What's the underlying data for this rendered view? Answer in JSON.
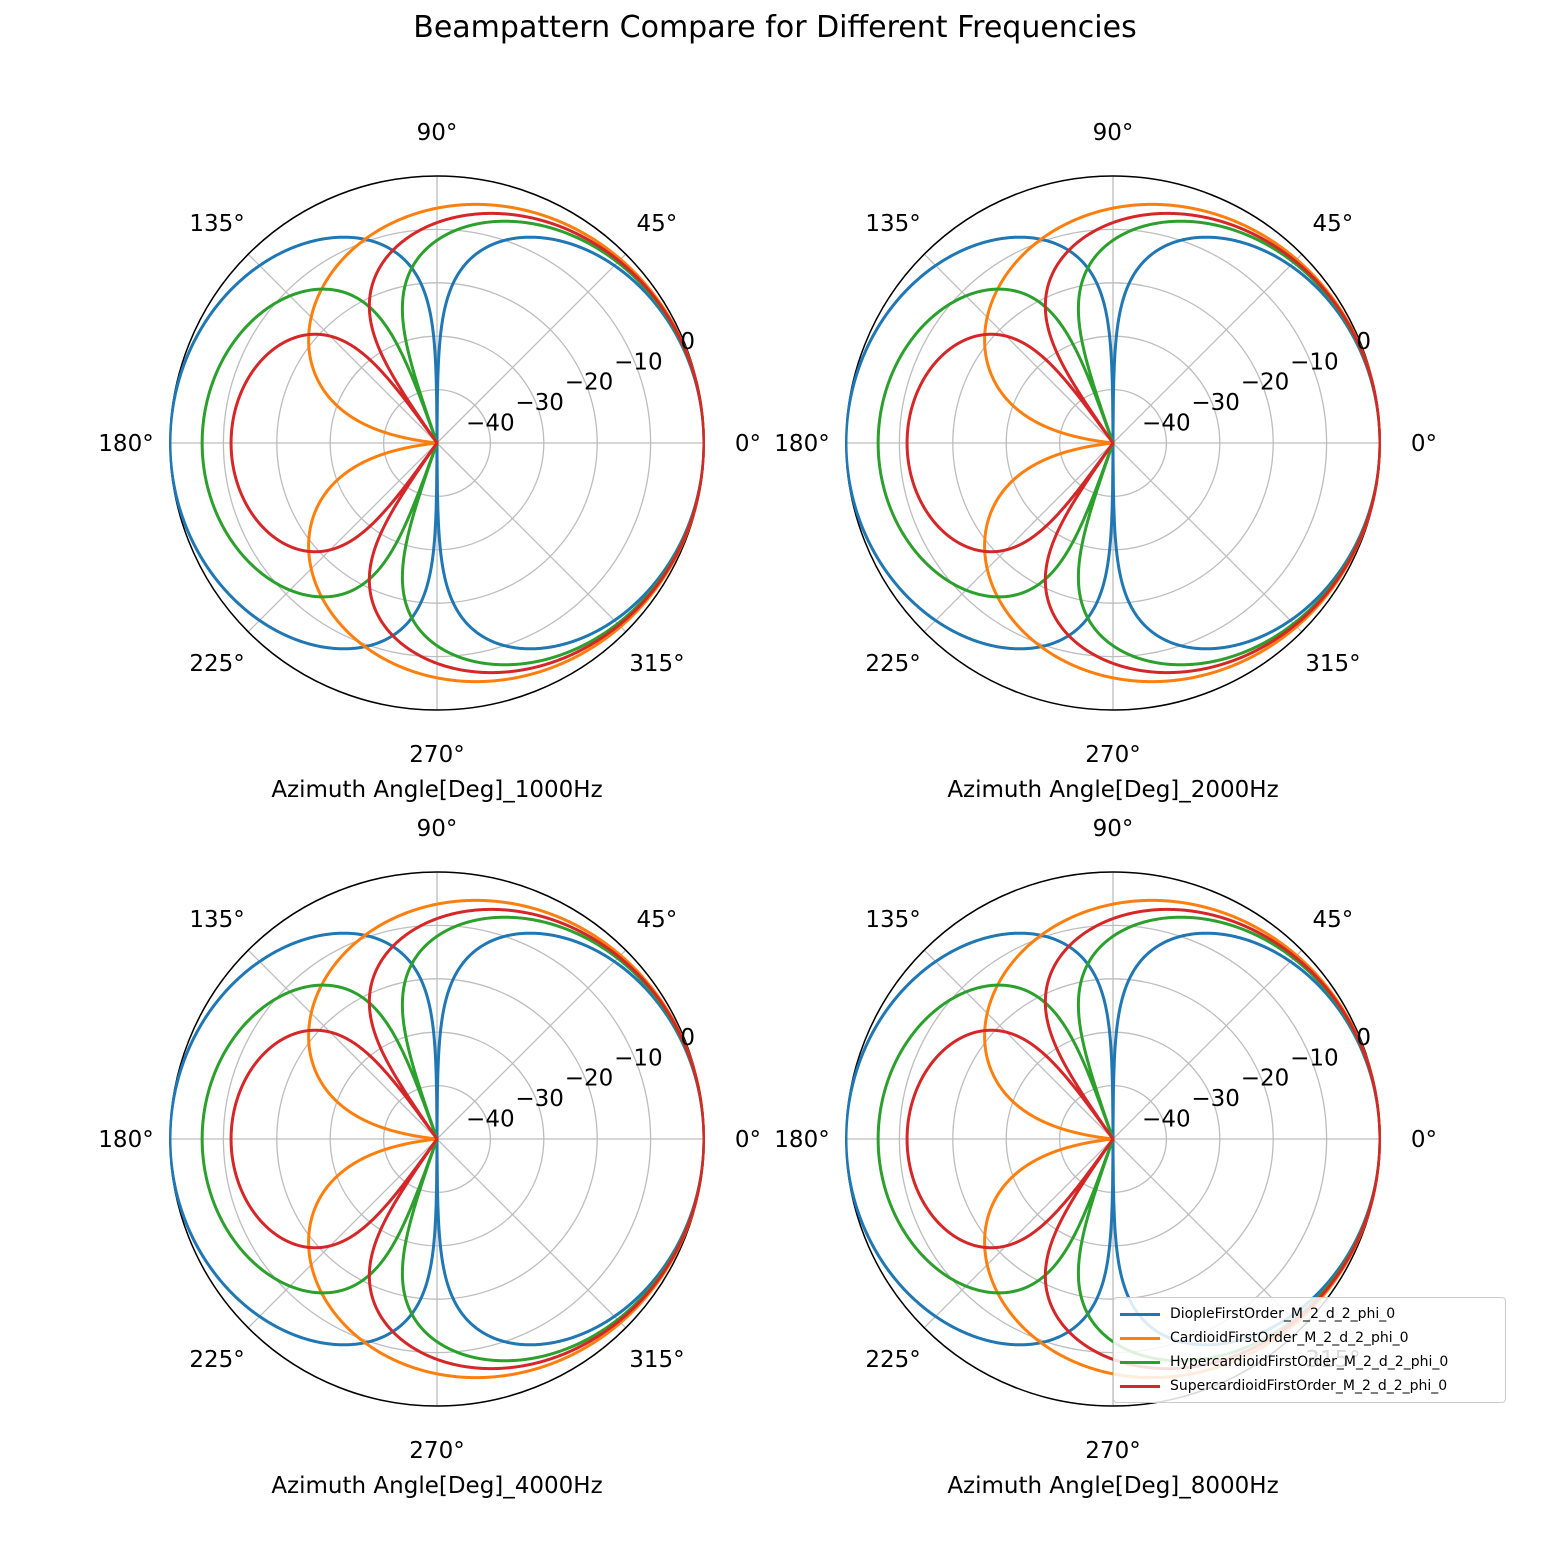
{
  "figure": {
    "title": "Beampattern Compare for Different Frequencies"
  },
  "colors": {
    "DiopleFirstOrder_M_2_d_2_phi_0": "#1f77b4",
    "CardioidFirstOrder_M_2_d_2_phi_0": "#ff7f0e",
    "HypercardioidFirstOrder_M_2_d_2_phi_0": "#2ca02c",
    "SupercardioidFirstOrder_M_2_d_2_phi_0": "#d62728"
  },
  "legend": {
    "placement": "lower-right",
    "entries": [
      "DiopleFirstOrder_M_2_d_2_phi_0",
      "CardioidFirstOrder_M_2_d_2_phi_0",
      "HypercardioidFirstOrder_M_2_d_2_phi_0",
      "SupercardioidFirstOrder_M_2_d_2_phi_0"
    ]
  },
  "chart_data": [
    {
      "type": "polar-line",
      "xlabel": "Azimuth Angle[Deg]_1000Hz",
      "angle_ticks": [
        "0°",
        "45°",
        "90°",
        "135°",
        "180°",
        "225°",
        "270°",
        "315°"
      ],
      "radial_ticks": [
        "−40",
        "−30",
        "−20",
        "−10",
        "0"
      ],
      "rlim_db": [
        -50,
        0
      ],
      "grid": true,
      "series": [
        {
          "name": "DiopleFirstOrder_M_2_d_2_phi_0",
          "model": "first_order",
          "alpha": 0.0
        },
        {
          "name": "CardioidFirstOrder_M_2_d_2_phi_0",
          "model": "first_order",
          "alpha": 0.5
        },
        {
          "name": "HypercardioidFirstOrder_M_2_d_2_phi_0",
          "model": "first_order",
          "alpha": 0.25
        },
        {
          "name": "SupercardioidFirstOrder_M_2_d_2_phi_0",
          "model": "first_order",
          "alpha": 0.366
        }
      ]
    },
    {
      "type": "polar-line",
      "xlabel": "Azimuth Angle[Deg]_2000Hz",
      "angle_ticks": [
        "0°",
        "45°",
        "90°",
        "135°",
        "180°",
        "225°",
        "270°",
        "315°"
      ],
      "radial_ticks": [
        "−40",
        "−30",
        "−20",
        "−10",
        "0"
      ],
      "rlim_db": [
        -50,
        0
      ],
      "grid": true,
      "series": [
        {
          "name": "DiopleFirstOrder_M_2_d_2_phi_0",
          "model": "first_order",
          "alpha": 0.0
        },
        {
          "name": "CardioidFirstOrder_M_2_d_2_phi_0",
          "model": "first_order",
          "alpha": 0.5
        },
        {
          "name": "HypercardioidFirstOrder_M_2_d_2_phi_0",
          "model": "first_order",
          "alpha": 0.25
        },
        {
          "name": "SupercardioidFirstOrder_M_2_d_2_phi_0",
          "model": "first_order",
          "alpha": 0.366
        }
      ]
    },
    {
      "type": "polar-line",
      "xlabel": "Azimuth Angle[Deg]_4000Hz",
      "angle_ticks": [
        "0°",
        "45°",
        "90°",
        "135°",
        "180°",
        "225°",
        "270°",
        "315°"
      ],
      "radial_ticks": [
        "−40",
        "−30",
        "−20",
        "−10",
        "0"
      ],
      "rlim_db": [
        -50,
        0
      ],
      "grid": true,
      "series": [
        {
          "name": "DiopleFirstOrder_M_2_d_2_phi_0",
          "model": "first_order",
          "alpha": 0.0
        },
        {
          "name": "CardioidFirstOrder_M_2_d_2_phi_0",
          "model": "first_order",
          "alpha": 0.5
        },
        {
          "name": "HypercardioidFirstOrder_M_2_d_2_phi_0",
          "model": "first_order",
          "alpha": 0.25
        },
        {
          "name": "SupercardioidFirstOrder_M_2_d_2_phi_0",
          "model": "first_order",
          "alpha": 0.366
        }
      ]
    },
    {
      "type": "polar-line",
      "xlabel": "Azimuth Angle[Deg]_8000Hz",
      "angle_ticks": [
        "0°",
        "45°",
        "90°",
        "135°",
        "180°",
        "225°",
        "270°",
        "315°"
      ],
      "radial_ticks": [
        "−40",
        "−30",
        "−20",
        "−10",
        "0"
      ],
      "rlim_db": [
        -50,
        0
      ],
      "grid": true,
      "series": [
        {
          "name": "DiopleFirstOrder_M_2_d_2_phi_0",
          "model": "first_order",
          "alpha": 0.0
        },
        {
          "name": "CardioidFirstOrder_M_2_d_2_phi_0",
          "model": "first_order",
          "alpha": 0.5,
          "clipped_above_db": 0
        },
        {
          "name": "HypercardioidFirstOrder_M_2_d_2_phi_0",
          "model": "first_order",
          "alpha": 0.25
        },
        {
          "name": "SupercardioidFirstOrder_M_2_d_2_phi_0",
          "model": "first_order",
          "alpha": 0.366
        }
      ]
    }
  ]
}
